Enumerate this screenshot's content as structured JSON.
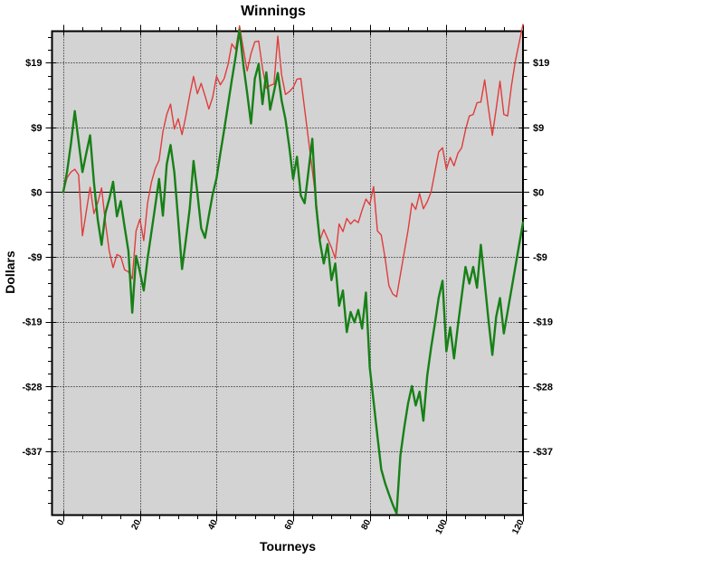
{
  "chart_data": {
    "type": "line",
    "title": "Winnings",
    "xlabel": "Tourneys",
    "ylabel": "Dollars",
    "x_ticks": [
      0,
      20,
      40,
      60,
      80,
      100,
      120
    ],
    "x_minor_step": 5,
    "y_ticks": [
      {
        "label": "$19",
        "value": 18.7
      },
      {
        "label": "$9",
        "value": 9.35
      },
      {
        "label": "$0",
        "value": 0
      },
      {
        "label": "-$9",
        "value": -9.35
      },
      {
        "label": "-$19",
        "value": -18.7
      },
      {
        "label": "-$28",
        "value": -28.05
      },
      {
        "label": "-$37",
        "value": -37.4
      }
    ],
    "y_minor_divisions": 5,
    "xlim": [
      -2.94,
      120
    ],
    "ylim": [
      -46.62,
      23.23
    ],
    "grid": "dotted",
    "zero_line": true,
    "plot_background": "#d3d3d3",
    "outer_background": "#ffffff",
    "legend": "none",
    "x": [
      0,
      1,
      2,
      3,
      4,
      5,
      6,
      7,
      8,
      9,
      10,
      11,
      12,
      13,
      14,
      15,
      16,
      17,
      18,
      19,
      20,
      21,
      22,
      23,
      24,
      25,
      26,
      27,
      28,
      29,
      30,
      31,
      32,
      33,
      34,
      35,
      36,
      37,
      38,
      39,
      40,
      41,
      42,
      43,
      44,
      45,
      46,
      47,
      48,
      49,
      50,
      51,
      52,
      53,
      54,
      55,
      56,
      57,
      58,
      59,
      60,
      61,
      62,
      63,
      64,
      65,
      66,
      67,
      68,
      69,
      70,
      71,
      72,
      73,
      74,
      75,
      76,
      77,
      78,
      79,
      80,
      81,
      82,
      83,
      84,
      85,
      86,
      87,
      88,
      89,
      90,
      91,
      92,
      93,
      94,
      95,
      96,
      97,
      98,
      99,
      100,
      101,
      102,
      103,
      104,
      105,
      106,
      107,
      108,
      109,
      110,
      111,
      112,
      113,
      114,
      115,
      116,
      117,
      118,
      119,
      120
    ],
    "series": [
      {
        "name": "red_series",
        "color": "#e03c3c",
        "width": 1.4,
        "values": [
          0.0,
          2.1,
          2.9,
          3.3,
          2.5,
          -6.3,
          -2.8,
          0.7,
          -3.1,
          -1.5,
          0.6,
          -4.4,
          -8.5,
          -10.9,
          -9.0,
          -9.3,
          -11.2,
          -11.5,
          -12.5,
          -5.6,
          -3.9,
          -7.0,
          -1.6,
          1.4,
          3.4,
          4.6,
          8.7,
          11.2,
          12.7,
          9.1,
          10.6,
          8.3,
          11.0,
          14.0,
          16.7,
          14.2,
          15.7,
          13.9,
          12.0,
          13.7,
          16.7,
          15.5,
          16.4,
          18.4,
          21.4,
          20.6,
          24.0,
          20.7,
          17.5,
          20.0,
          21.7,
          21.8,
          17.9,
          15.0,
          15.4,
          15.6,
          22.5,
          16.9,
          14.1,
          14.5,
          15.1,
          16.3,
          16.4,
          12.0,
          7.6,
          3.2,
          -1.2,
          -6.9,
          -5.4,
          -6.7,
          -8.0,
          -9.6,
          -4.6,
          -5.7,
          -3.8,
          -4.6,
          -4.0,
          -4.4,
          -2.6,
          -1.0,
          -1.8,
          0.8,
          -5.6,
          -6.2,
          -9.5,
          -13.5,
          -14.7,
          -15.1,
          -11.9,
          -8.7,
          -5.5,
          -1.6,
          -2.5,
          -0.2,
          -2.4,
          -1.4,
          0.0,
          2.9,
          5.8,
          6.4,
          3.3,
          5.0,
          3.8,
          5.6,
          6.4,
          9.0,
          11.0,
          11.2,
          12.9,
          13.0,
          16.2,
          12.0,
          8.2,
          12.0,
          16.0,
          11.2,
          11.0,
          15.4,
          18.9,
          21.6,
          24.2
        ]
      },
      {
        "name": "green_series",
        "color": "#178017",
        "width": 2.4,
        "values": [
          0.0,
          3.0,
          7.0,
          11.7,
          7.3,
          2.9,
          5.6,
          8.2,
          1.4,
          -4.0,
          -7.6,
          -3.0,
          -1.0,
          1.5,
          -3.5,
          -1.3,
          -5.0,
          -8.5,
          -17.4,
          -9.2,
          -11.5,
          -14.2,
          -9.6,
          -5.8,
          -2.0,
          1.9,
          -3.4,
          4.0,
          6.8,
          2.8,
          -4.1,
          -11.1,
          -6.9,
          -2.4,
          4.5,
          -0.1,
          -5.2,
          -6.6,
          -3.4,
          -0.3,
          2.0,
          5.6,
          9.0,
          12.6,
          16.2,
          19.6,
          23.4,
          18.4,
          14.3,
          9.9,
          16.4,
          18.5,
          12.7,
          17.3,
          11.9,
          14.5,
          17.2,
          13.2,
          10.5,
          6.5,
          1.9,
          5.1,
          -0.5,
          -1.6,
          3.0,
          7.7,
          -2.0,
          -7.2,
          -10.3,
          -7.5,
          -12.7,
          -10.3,
          -16.4,
          -14.2,
          -20.2,
          -17.3,
          -18.8,
          -17.0,
          -19.7,
          -14.5,
          -25.3,
          -30.2,
          -35.2,
          -40.0,
          -42.0,
          -43.6,
          -45.1,
          -46.4,
          -38.0,
          -34.0,
          -30.5,
          -28.0,
          -30.8,
          -28.8,
          -33.0,
          -26.5,
          -22.5,
          -19.0,
          -15.2,
          -12.8,
          -23.0,
          -19.5,
          -24.0,
          -19.3,
          -15.0,
          -10.8,
          -13.2,
          -10.8,
          -13.8,
          -7.6,
          -13.0,
          -18.5,
          -23.5,
          -18.0,
          -15.3,
          -20.4,
          -17.2,
          -14.0,
          -10.8,
          -7.6,
          -4.4
        ]
      }
    ]
  }
}
